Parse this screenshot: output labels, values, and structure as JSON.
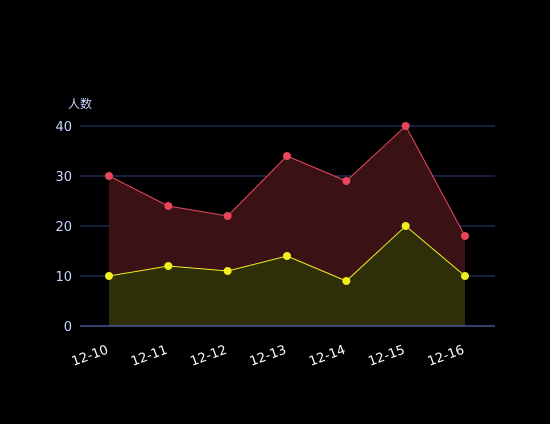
{
  "chart_data": {
    "type": "area",
    "title": "",
    "xlabel": "",
    "ylabel": "人数",
    "categories": [
      "12-10",
      "12-11",
      "12-12",
      "12-13",
      "12-14",
      "12-15",
      "12-16"
    ],
    "series": [
      {
        "values": [
          30,
          24,
          22,
          34,
          29,
          40,
          18
        ],
        "color": "#e8475b",
        "fill": "#3a1216"
      },
      {
        "values": [
          10,
          12,
          11,
          14,
          9,
          20,
          10
        ],
        "color": "#f2ef1f",
        "fill": "#2e2e08"
      }
    ],
    "ylim": [
      0,
      40
    ],
    "yticks": [
      0,
      10,
      20,
      30,
      40
    ],
    "grid": true,
    "legend": "none",
    "colors": {
      "background": "#000000",
      "axis": "#5b7fd6",
      "grid": "#2b3f77",
      "tick_label": "#c7d4ff",
      "category_label": "#ffffff"
    }
  }
}
